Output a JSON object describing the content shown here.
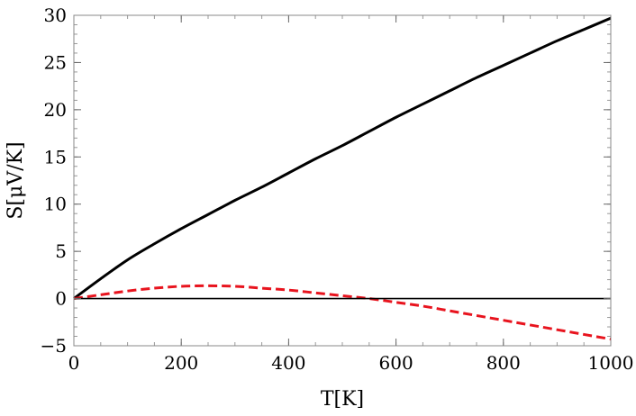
{
  "chart_data": {
    "type": "line",
    "xlabel": "T[K]",
    "ylabel": "S[μV/K]",
    "xlim": [
      0,
      1000
    ],
    "ylim": [
      -5,
      30
    ],
    "x_ticks": [
      0,
      200,
      400,
      600,
      800,
      1000
    ],
    "y_ticks": [
      -5,
      0,
      5,
      10,
      15,
      20,
      25,
      30
    ],
    "x_minor_step": 50,
    "y_minor_step": 1,
    "grid": false,
    "series": [
      {
        "color": "#000000",
        "style": "solid",
        "x": [
          0,
          50,
          100,
          150,
          200,
          250,
          300,
          350,
          400,
          450,
          500,
          550,
          600,
          650,
          700,
          750,
          800,
          850,
          900,
          950,
          1000
        ],
        "y": [
          0,
          2.1,
          4.1,
          5.8,
          7.4,
          8.9,
          10.4,
          11.8,
          13.3,
          14.8,
          16.2,
          17.7,
          19.2,
          20.6,
          22.0,
          23.4,
          24.7,
          26.0,
          27.3,
          28.5,
          29.7
        ]
      },
      {
        "color": "#e8141e",
        "style": "dashed",
        "x": [
          0,
          50,
          100,
          150,
          200,
          250,
          300,
          350,
          400,
          450,
          500,
          550,
          600,
          650,
          700,
          750,
          800,
          850,
          900,
          950,
          1000
        ],
        "y": [
          0,
          0.4,
          0.8,
          1.1,
          1.3,
          1.35,
          1.3,
          1.1,
          0.9,
          0.6,
          0.3,
          0.0,
          -0.4,
          -0.8,
          -1.3,
          -1.8,
          -2.3,
          -2.8,
          -3.3,
          -3.8,
          -4.3
        ]
      },
      {
        "color": "#000000",
        "style": "thin",
        "x": [
          0,
          1000
        ],
        "y": [
          0,
          0
        ]
      }
    ]
  }
}
